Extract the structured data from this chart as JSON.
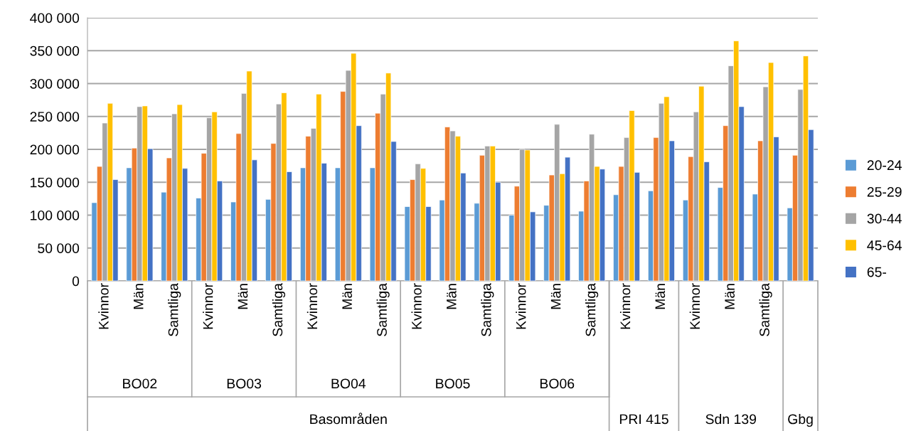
{
  "chart_data": {
    "type": "bar",
    "categories": [
      "Kvinnor",
      "Män",
      "Samtliga",
      "Kvinnor",
      "Män",
      "Samtliga",
      "Kvinnor",
      "Män",
      "Samtliga",
      "Kvinnor",
      "Män",
      "Samtliga",
      "Kvinnor",
      "Män",
      "Samtliga",
      "Kvinnor",
      "Män",
      "Kvinnor",
      "Män",
      "Samtliga",
      null
    ],
    "annotations": [
      "BO02",
      "BO03",
      "BO04",
      "BO05",
      "BO06",
      "Basområden",
      "PRI 415",
      "Sdn 139",
      "Gbg"
    ],
    "series": [
      {
        "name": "20-24",
        "color": "#5b9bd5",
        "values": [
          119000,
          172000,
          135000,
          126000,
          120000,
          124000,
          172000,
          172000,
          172000,
          113000,
          123000,
          118000,
          100000,
          115000,
          106000,
          131000,
          137000,
          123000,
          142000,
          132000,
          111000
        ]
      },
      {
        "name": "25-29",
        "color": "#ed7d31",
        "values": [
          174000,
          202000,
          187000,
          194000,
          224000,
          209000,
          220000,
          288000,
          255000,
          154000,
          234000,
          191000,
          144000,
          161000,
          152000,
          174000,
          218000,
          189000,
          236000,
          213000,
          191000
        ]
      },
      {
        "name": "30-44",
        "color": "#a5a5a5",
        "values": [
          240000,
          265000,
          254000,
          248000,
          285000,
          269000,
          232000,
          320000,
          284000,
          178000,
          228000,
          205000,
          200000,
          238000,
          223000,
          218000,
          270000,
          257000,
          327000,
          295000,
          291000
        ]
      },
      {
        "name": "45-64",
        "color": "#ffc000",
        "values": [
          270000,
          266000,
          268000,
          257000,
          319000,
          286000,
          284000,
          346000,
          316000,
          171000,
          220000,
          205000,
          199000,
          163000,
          174000,
          259000,
          280000,
          296000,
          365000,
          332000,
          342000
        ]
      },
      {
        "name": "65-",
        "color": "#4472c4",
        "values": [
          154000,
          201000,
          171000,
          152000,
          184000,
          166000,
          179000,
          236000,
          212000,
          113000,
          164000,
          150000,
          105000,
          188000,
          170000,
          165000,
          213000,
          181000,
          265000,
          219000,
          230000
        ]
      }
    ],
    "ylim": [
      0,
      400000
    ],
    "yticks": [
      {
        "value": 0,
        "label": "0"
      },
      {
        "value": 50000,
        "label": "50 000"
      },
      {
        "value": 100000,
        "label": "100 000"
      },
      {
        "value": 150000,
        "label": "150 000"
      },
      {
        "value": 200000,
        "label": "200 000"
      },
      {
        "value": 250000,
        "label": "250 000"
      },
      {
        "value": 300000,
        "label": "300 000"
      },
      {
        "value": 350000,
        "label": "350 000"
      },
      {
        "value": 400000,
        "label": "400 000"
      }
    ],
    "grid": "y",
    "legend": "right"
  }
}
